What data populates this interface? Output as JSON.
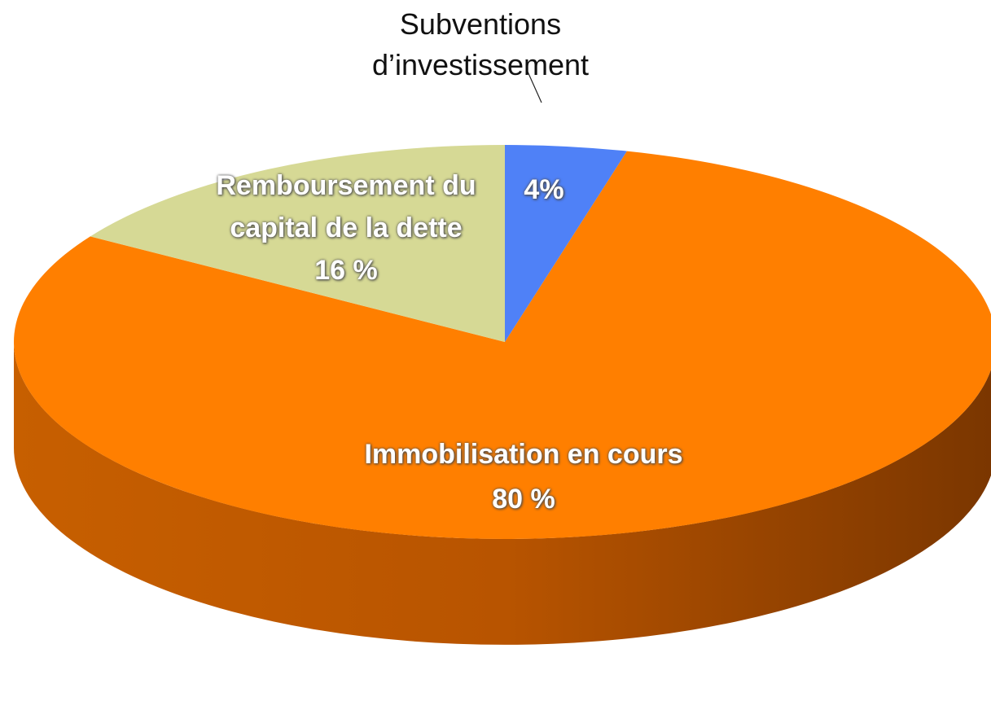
{
  "chart_data": {
    "type": "pie",
    "categories": [
      "Subventions d’investissement",
      "Immobilisation en cours",
      "Remboursement du capital de la dette"
    ],
    "values": [
      4,
      80,
      16
    ],
    "value_labels": [
      "4%",
      "80 %",
      "16 %"
    ],
    "colors": [
      "#4f81f7",
      "#ff7f00",
      "#d6d995"
    ]
  }
}
